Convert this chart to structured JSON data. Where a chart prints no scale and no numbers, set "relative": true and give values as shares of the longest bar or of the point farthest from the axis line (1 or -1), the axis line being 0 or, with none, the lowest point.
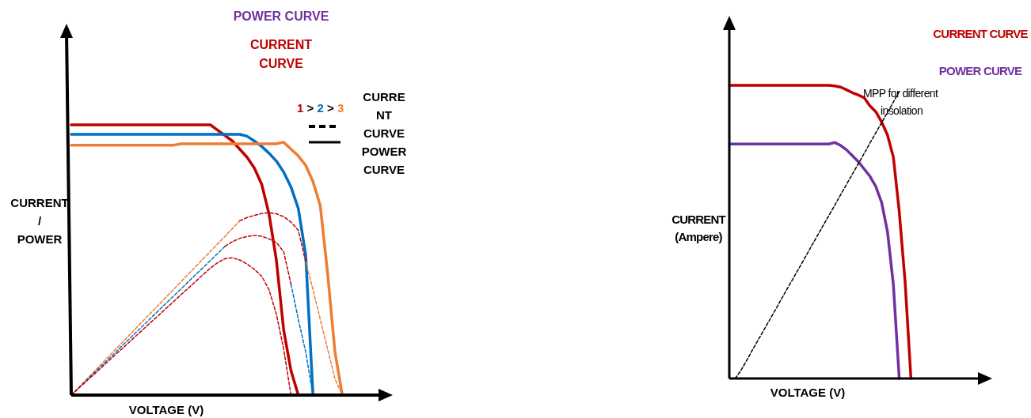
{
  "chart_data": [
    {
      "type": "line",
      "relative": true,
      "xlabel": "VOLTAGE (V)",
      "ylabel": "CURRENT / POWER",
      "categories": [
        null,
        null,
        null,
        null,
        null,
        null,
        null,
        null,
        null,
        null,
        null,
        null,
        null,
        null,
        null,
        null,
        null,
        null,
        null,
        null,
        null,
        null,
        null,
        null,
        null,
        null,
        null,
        null,
        null,
        null,
        null,
        null,
        null,
        null,
        null,
        null,
        null,
        null,
        null,
        null,
        null
      ],
      "annotations": [
        "POWER CURVE",
        "CURRENT CURVE",
        "1 > 2 > 3",
        "CURRENT CURVE POWER CURVE"
      ],
      "series": [
        {
          "color": "#ed7d31",
          "line_style": "dashed",
          "values": [
            0,
            0.028,
            0.056,
            0.084,
            0.112,
            0.14,
            0.168,
            0.196,
            0.224,
            0.252,
            0.28,
            0.308,
            0.336,
            0.364,
            0.392,
            0.42,
            0.448,
            0.476,
            0.504,
            0.532,
            0.56,
            0.588,
            0.616,
            0.645,
            null,
            null,
            null,
            null,
            null,
            null,
            null,
            null,
            0.494,
            0.39,
            0.28,
            0.17,
            0.06,
            0,
            null,
            null,
            null
          ]
        },
        {
          "color": "#c00000",
          "line_style": "dashed",
          "values": [
            null,
            null,
            null,
            null,
            null,
            null,
            null,
            null,
            null,
            null,
            null,
            null,
            null,
            null,
            null,
            null,
            null,
            null,
            null,
            null,
            null,
            null,
            null,
            0.645,
            0.657,
            0.665,
            0.672,
            0.675,
            0.671,
            0.66,
            0.64,
            0.61,
            0.494,
            null,
            null,
            null,
            null,
            null,
            null,
            null,
            null
          ]
        },
        {
          "color": "#0070c0",
          "line_style": "dashed",
          "values": [
            0,
            0.026,
            0.052,
            0.079,
            0.105,
            0.131,
            0.157,
            0.184,
            0.21,
            0.236,
            0.262,
            0.289,
            0.315,
            0.341,
            0.367,
            0.393,
            0.42,
            0.446,
            0.472,
            0.498,
            0.524,
            0.551,
            null,
            null,
            null,
            null,
            null,
            null,
            null,
            null,
            0.41,
            0.28,
            0.16,
            0,
            null,
            null,
            null,
            null,
            null,
            null,
            null
          ]
        },
        {
          "color": "#c00000",
          "line_style": "dashed",
          "values": [
            null,
            null,
            null,
            null,
            null,
            null,
            null,
            null,
            null,
            null,
            null,
            null,
            null,
            null,
            null,
            null,
            null,
            null,
            null,
            null,
            null,
            0.551,
            0.568,
            0.58,
            0.587,
            0.591,
            0.588,
            0.578,
            0.565,
            0.53,
            0.41,
            null,
            null,
            null,
            null,
            null,
            null,
            null,
            null,
            null,
            null
          ]
        },
        {
          "color": "#c00000",
          "line_style": "dashed",
          "values": [
            0,
            0.025,
            0.05,
            0.074,
            0.099,
            0.124,
            0.149,
            0.173,
            0.198,
            0.223,
            0.248,
            0.273,
            0.297,
            0.322,
            0.347,
            0.372,
            0.396,
            0.421,
            0.446,
            0.47,
            0.49,
            0.505,
            0.508,
            0.5,
            0.485,
            0.465,
            0.44,
            0.39,
            0.3,
            0.17,
            0,
            null,
            null,
            null,
            null,
            null,
            null,
            null,
            null,
            null,
            null
          ]
        },
        {
          "color": "#c00000",
          "line_style": "solid",
          "values": [
            1,
            1,
            1,
            1,
            1,
            1,
            1,
            1,
            1,
            1,
            1,
            1,
            1,
            1,
            1,
            1,
            1,
            1,
            1,
            1,
            0.98,
            0.96,
            0.94,
            0.91,
            0.88,
            0.84,
            0.78,
            0.67,
            0.5,
            0.24,
            0.09,
            0,
            null,
            null,
            null,
            null,
            null,
            null,
            null,
            null,
            null
          ]
        },
        {
          "color": "#0070c0",
          "line_style": "solid",
          "values": [
            0.965,
            0.965,
            0.965,
            0.965,
            0.965,
            0.965,
            0.965,
            0.965,
            0.965,
            0.965,
            0.965,
            0.965,
            0.965,
            0.965,
            0.965,
            0.965,
            0.965,
            0.965,
            0.965,
            0.965,
            0.965,
            0.965,
            0.965,
            0.965,
            0.958,
            0.94,
            0.92,
            0.895,
            0.866,
            0.825,
            0.77,
            0.69,
            0.52,
            0,
            null,
            null,
            null,
            null,
            null,
            null,
            null
          ]
        },
        {
          "color": "#ed7d31",
          "line_style": "solid",
          "values": [
            0.925,
            0.925,
            0.925,
            0.925,
            0.925,
            0.925,
            0.925,
            0.925,
            0.925,
            0.925,
            0.925,
            0.925,
            0.925,
            0.925,
            0.925,
            0.93,
            0.93,
            0.93,
            0.93,
            0.93,
            0.93,
            0.93,
            0.93,
            0.93,
            0.93,
            0.93,
            0.93,
            0.93,
            0.93,
            0.936,
            0.91,
            0.885,
            0.85,
            0.79,
            0.7,
            0.45,
            0.16,
            0,
            null,
            null,
            null
          ]
        }
      ]
    },
    {
      "type": "line",
      "relative": true,
      "xlabel": "VOLTAGE (V)",
      "ylabel": "CURRENT (Ampere)",
      "categories": [
        null,
        null,
        null,
        null,
        null,
        null,
        null,
        null,
        null,
        null,
        null,
        null,
        null,
        null,
        null,
        null,
        null,
        null,
        null,
        null,
        null,
        null,
        null,
        null,
        null,
        null,
        null,
        null,
        null,
        null,
        null,
        null,
        null,
        null,
        null,
        null,
        null,
        null,
        null,
        null,
        null
      ],
      "annotations": [
        "MPP for different insolation"
      ],
      "series": [
        {
          "color": "#000000",
          "line_style": "dashed",
          "values": [
            null,
            0,
            0.028,
            0.063,
            0.099,
            0.134,
            0.169,
            0.204,
            0.239,
            0.275,
            0.31,
            0.345,
            0.38,
            0.415,
            0.451,
            0.486,
            0.521,
            0.556,
            0.591,
            0.627,
            0.662,
            0.697,
            0.732,
            0.767,
            0.803,
            0.838,
            0.873,
            0.908,
            0.943,
            0.979,
            null,
            null,
            null,
            null,
            null,
            null,
            null,
            null,
            null,
            null,
            null
          ]
        },
        {
          "name": "CURRENT CURVE",
          "color": "#c00000",
          "line_style": "solid",
          "values": [
            1,
            1,
            1,
            1,
            1,
            1,
            1,
            1,
            1,
            1,
            1,
            1,
            1,
            1,
            1,
            1,
            1,
            1,
            0.998,
            0.994,
            0.985,
            0.975,
            0.967,
            0.958,
            0.93,
            0.91,
            0.875,
            0.83,
            0.755,
            0.57,
            0.33,
            0,
            null,
            null,
            null,
            null,
            null,
            null,
            null,
            null,
            null
          ]
        },
        {
          "name": "POWER CURVE",
          "color": "#7030a0",
          "line_style": "solid",
          "values": [
            0.8,
            0.8,
            0.8,
            0.8,
            0.8,
            0.8,
            0.8,
            0.8,
            0.8,
            0.8,
            0.8,
            0.8,
            0.8,
            0.8,
            0.8,
            0.8,
            0.8,
            0.8,
            0.805,
            0.795,
            0.78,
            0.76,
            0.74,
            0.715,
            0.69,
            0.655,
            0.6,
            0.5,
            0.32,
            0,
            null,
            null,
            null,
            null,
            null,
            null,
            null,
            null,
            null,
            null,
            null
          ]
        }
      ]
    }
  ]
}
